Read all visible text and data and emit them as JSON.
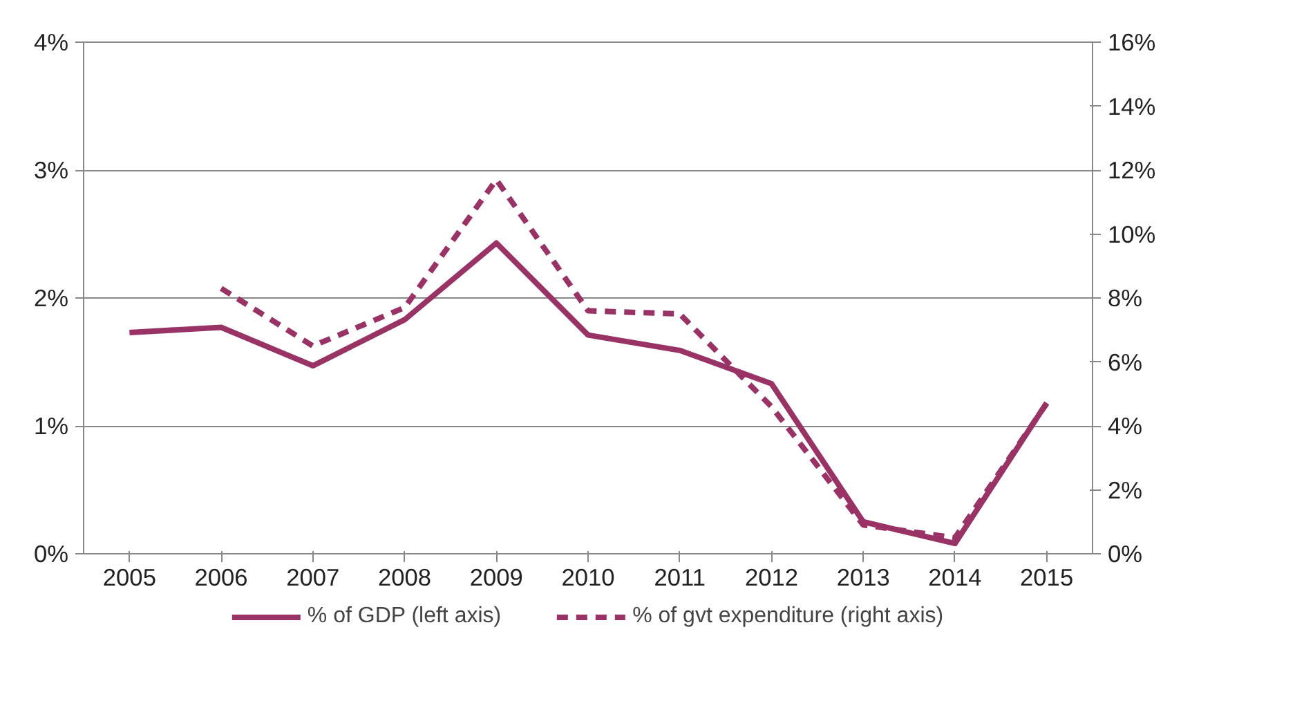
{
  "chart_data": {
    "type": "line",
    "categories": [
      "2005",
      "2006",
      "2007",
      "2008",
      "2009",
      "2010",
      "2011",
      "2012",
      "2013",
      "2014",
      "2015"
    ],
    "series": [
      {
        "name": "% of GDP (left axis)",
        "color": "#993366",
        "line_style": "solid",
        "values": [
          1.73,
          1.77,
          1.47,
          1.83,
          2.43,
          1.71,
          1.59,
          1.33,
          0.25,
          0.08,
          1.18
        ]
      },
      {
        "name": "% of gvt expenditure (right axis)",
        "color": "#993366",
        "line_style": "dashed",
        "axis": "y2",
        "values": [
          null,
          8.3,
          6.5,
          7.7,
          11.7,
          7.6,
          7.5,
          4.6,
          0.9,
          0.5,
          4.7
        ]
      }
    ],
    "ylim": [
      0,
      4
    ],
    "yticks": [
      {
        "value": 0,
        "label": "0%"
      },
      {
        "value": 1,
        "label": "1%"
      },
      {
        "value": 2,
        "label": "2%"
      },
      {
        "value": 3,
        "label": "3%"
      },
      {
        "value": 4,
        "label": "4%"
      }
    ],
    "y2lim": [
      0,
      16
    ],
    "y2ticks": [
      {
        "value": 0,
        "label": "0%"
      },
      {
        "value": 2,
        "label": "2%"
      },
      {
        "value": 4,
        "label": "4%"
      },
      {
        "value": 6,
        "label": "6%"
      },
      {
        "value": 8,
        "label": "8%"
      },
      {
        "value": 10,
        "label": "10%"
      },
      {
        "value": 12,
        "label": "12%"
      },
      {
        "value": 14,
        "label": "14%"
      },
      {
        "value": 16,
        "label": "16%"
      }
    ],
    "grid": "y",
    "legend": "bottom",
    "marker": "none"
  }
}
